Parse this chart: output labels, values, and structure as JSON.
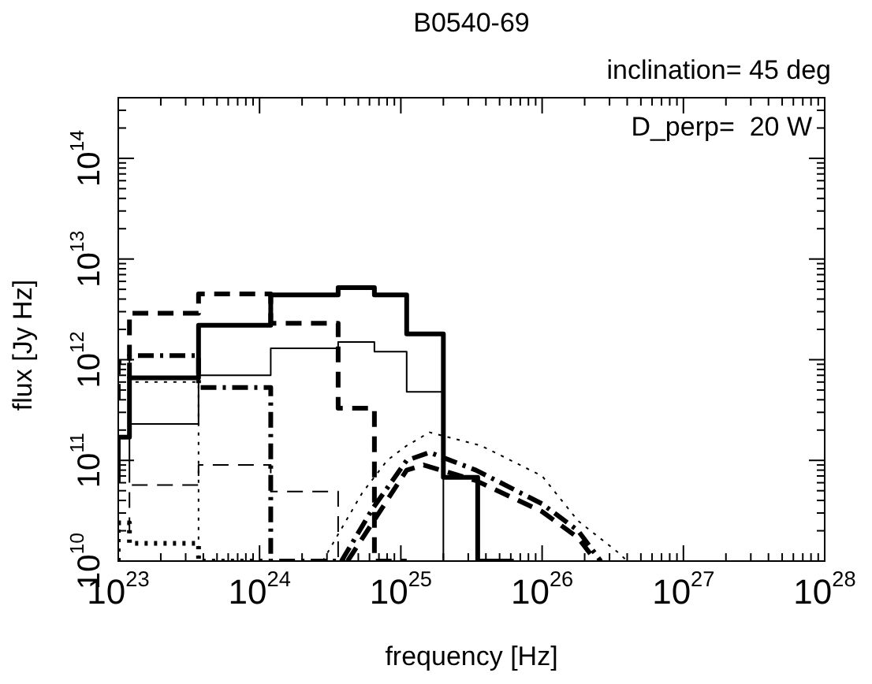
{
  "chart_data": {
    "type": "line",
    "title": "B0540-69",
    "xlabel": "frequency [Hz]",
    "ylabel": "flux [Jy Hz]",
    "annotations": [
      "inclination= 45 deg",
      "D_perp=  20 W"
    ],
    "log": "xy",
    "grid": false,
    "legend": false,
    "marker": "none",
    "xlim": [
      1e+23,
      1e+28
    ],
    "ylim": [
      10000000000.0,
      400000000000000.0
    ],
    "xticks": [
      {
        "value": 1e+23,
        "label": "10$^{23}$"
      },
      {
        "value": 1e+24,
        "label": "10$^{24}$"
      },
      {
        "value": 1e+25,
        "label": "10$^{25}$"
      },
      {
        "value": 1e+26,
        "label": "10$^{26}$"
      },
      {
        "value": 1e+27,
        "label": "10$^{27}$"
      },
      {
        "value": 1e+28,
        "label": "10$^{28}$"
      }
    ],
    "yticks": [
      {
        "value": 10000000000.0,
        "label": "10$^{10}$"
      },
      {
        "value": 100000000000.0,
        "label": "10$^{11}$"
      },
      {
        "value": 1000000000000.0,
        "label": "10$^{12}$"
      },
      {
        "value": 10000000000000.0,
        "label": "10$^{13}$"
      },
      {
        "value": 100000000000000.0,
        "label": "10$^{14}$"
      }
    ],
    "series": [
      {
        "type": "step",
        "color": "#000000",
        "line_style": "solid",
        "x": [
          1e+23,
          1.2e+23,
          3.7e+23,
          1.2e+24,
          3.6e+24,
          6.5e+24,
          1.1e+25,
          2e+25,
          3.5e+25,
          6.3e+25
        ],
        "values": [
          60000000000.0,
          170000000000.0,
          660000000000.0,
          2200000000000.0,
          4400000000000.0,
          5200000000000.0,
          4400000000000.0,
          1800000000000.0,
          68000000000.0,
          10000000000.0
        ]
      },
      {
        "type": "step",
        "color": "#000000",
        "line_style": "solid",
        "x": [
          1.2e+23,
          3.7e+23,
          1.2e+24,
          3.6e+24,
          6.5e+24,
          1.1e+25,
          2e+25,
          3.5e+25
        ],
        "values": [
          60000000000.0,
          230000000000.0,
          700000000000.0,
          1300000000000.0,
          1500000000000.0,
          1200000000000.0,
          480000000000.0,
          10000000000.0
        ]
      },
      {
        "type": "step",
        "color": "#000000",
        "line_style": "dashed",
        "x": [
          1e+23,
          1.2e+23,
          3.7e+23,
          1.2e+24,
          3.6e+24,
          6.5e+24,
          1.1e+25
        ],
        "values": [
          400000000000.0,
          950000000000.0,
          2900000000000.0,
          4500000000000.0,
          2300000000000.0,
          330000000000.0,
          10000000000.0
        ]
      },
      {
        "type": "step",
        "color": "#000000",
        "line_style": "dashdot",
        "x": [
          1.2e+23,
          3.7e+23,
          1.2e+24,
          3.6e+24
        ],
        "values": [
          650000000000.0,
          1100000000000.0,
          530000000000.0,
          10000000000.0
        ]
      },
      {
        "type": "step",
        "color": "#000000",
        "line_style": "dashed",
        "x": [
          1.2e+23,
          3.7e+23,
          1.2e+24,
          3.6e+24,
          6.5e+24
        ],
        "values": [
          19000000000.0,
          57000000000.0,
          90000000000.0,
          49000000000.0,
          10000000000.0
        ]
      },
      {
        "type": "step",
        "color": "#000000",
        "line_style": "dotted",
        "x": [
          1e+23,
          1.2e+23,
          3.7e+23,
          1.2e+24
        ],
        "values": [
          10000000000.0,
          24000000000.0,
          15000000000.0,
          10000000000.0
        ]
      },
      {
        "type": "step",
        "color": "#000000",
        "line_style": "dotted",
        "x": [
          1.2e+23,
          3.7e+23,
          1.2e+24
        ],
        "values": [
          1000000000000.0,
          600000000000.0,
          10000000000.0
        ]
      },
      {
        "type": "line",
        "color": "#000000",
        "line_style": "dotted",
        "x": [
          2.8e+24,
          5.3e+24,
          8e+24,
          1.1e+25,
          1.6e+25,
          3.7e+25,
          1e+26,
          1.8e+26,
          3.5e+26,
          4e+26
        ],
        "values": [
          10000000000.0,
          47000000000.0,
          100000000000.0,
          140000000000.0,
          190000000000.0,
          140000000000.0,
          70000000000.0,
          25000000000.0,
          12000000000.0,
          10000000000.0
        ]
      },
      {
        "type": "line",
        "color": "#000000",
        "line_style": "dashdot",
        "x": [
          3.8e+24,
          6.3e+24,
          1.1e+25,
          1.6e+25,
          3.4e+25,
          1e+26,
          1.8e+26,
          2.6e+26
        ],
        "values": [
          10000000000.0,
          33000000000.0,
          100000000000.0,
          120000000000.0,
          80000000000.0,
          37000000000.0,
          20000000000.0,
          10000000000.0
        ]
      },
      {
        "type": "line",
        "color": "#000000",
        "line_style": "dashed",
        "x": [
          4.2e+24,
          6.3e+24,
          1.1e+25,
          1.45e+25,
          3.4e+25,
          1e+26,
          1.8e+26,
          2.4e+26
        ],
        "values": [
          10000000000.0,
          24000000000.0,
          80000000000.0,
          90000000000.0,
          63000000000.0,
          31000000000.0,
          17000000000.0,
          10000000000.0
        ]
      }
    ]
  }
}
